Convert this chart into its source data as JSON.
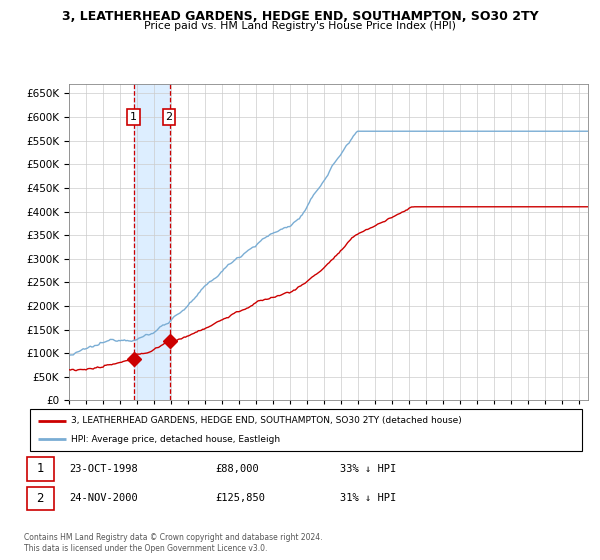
{
  "title": "3, LEATHERHEAD GARDENS, HEDGE END, SOUTHAMPTON, SO30 2TY",
  "subtitle": "Price paid vs. HM Land Registry's House Price Index (HPI)",
  "legend_red": "3, LEATHERHEAD GARDENS, HEDGE END, SOUTHAMPTON, SO30 2TY (detached house)",
  "legend_blue": "HPI: Average price, detached house, Eastleigh",
  "transaction1_date": "23-OCT-1998",
  "transaction1_price": "£88,000",
  "transaction1_hpi": "33% ↓ HPI",
  "transaction2_date": "24-NOV-2000",
  "transaction2_price": "£125,850",
  "transaction2_hpi": "31% ↓ HPI",
  "footnote": "Contains HM Land Registry data © Crown copyright and database right 2024.\nThis data is licensed under the Open Government Licence v3.0.",
  "ylim": [
    0,
    670000
  ],
  "yticks": [
    0,
    50000,
    100000,
    150000,
    200000,
    250000,
    300000,
    350000,
    400000,
    450000,
    500000,
    550000,
    600000,
    650000
  ],
  "red_color": "#cc0000",
  "blue_color": "#7aadd4",
  "shade_color": "#ddeeff",
  "grid_color": "#cccccc",
  "bg_color": "#ffffff",
  "transaction1_year": 1998.82,
  "transaction1_value": 88000,
  "transaction2_year": 2000.92,
  "transaction2_value": 125850
}
